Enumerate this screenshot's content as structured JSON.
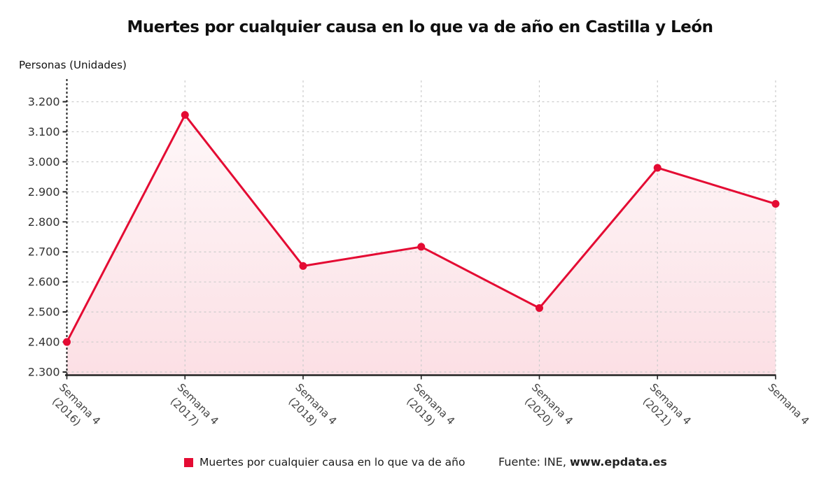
{
  "header": {
    "title": "Muertes por cualquier causa en lo que va de año en Castilla y León",
    "unit_label": "Personas (Unidades)"
  },
  "legend": {
    "series_label": "Muertes por cualquier causa en lo que va de año",
    "source_prefix": "Fuente: INE, ",
    "source_site": "www.epdata.es"
  },
  "colors": {
    "series": "#e40b33",
    "grid": "#cccccc",
    "axis": "#222222",
    "ytick_text": "#333333",
    "xtick_text": "#444444",
    "area_top": "rgba(228,11,51,0.03)",
    "area_bottom": "rgba(228,11,51,0.13)"
  },
  "chart_data": {
    "type": "line",
    "title": "Muertes por cualquier causa en lo que va de año en Castilla y León",
    "ylabel": "Personas (Unidades)",
    "xlabel": "",
    "categories": [
      "Semana 4 (2016)",
      "Semana 4 (2017)",
      "Semana 4 (2018)",
      "Semana 4 (2019)",
      "Semana 4 (2020)",
      "Semana 4 (2021)",
      "Semana 4"
    ],
    "x_tick_lines": [
      [
        "Semana 4",
        "(2016)"
      ],
      [
        "Semana 4",
        "(2017)"
      ],
      [
        "Semana 4",
        "(2018)"
      ],
      [
        "Semana 4",
        "(2019)"
      ],
      [
        "Semana 4",
        "(2020)"
      ],
      [
        "Semana 4",
        "(2021)"
      ],
      [
        "Semana 4"
      ]
    ],
    "series": [
      {
        "name": "Muertes por cualquier causa en lo que va de año",
        "values": [
          2400,
          3156,
          2653,
          2717,
          2513,
          2980,
          2860
        ],
        "color": "#e40b33"
      }
    ],
    "ylim": [
      2300,
      3200
    ],
    "yticks": [
      2300,
      2400,
      2500,
      2600,
      2700,
      2800,
      2900,
      3000,
      3100,
      3200
    ],
    "ytick_labels": [
      "2.300",
      "2.400",
      "2.500",
      "2.600",
      "2.700",
      "2.800",
      "2.900",
      "3.000",
      "3.100",
      "3.200"
    ],
    "grid": true,
    "marker": "circle",
    "area_fill": true,
    "legend_position": "bottom",
    "source": "Fuente: INE, www.epdata.es"
  }
}
